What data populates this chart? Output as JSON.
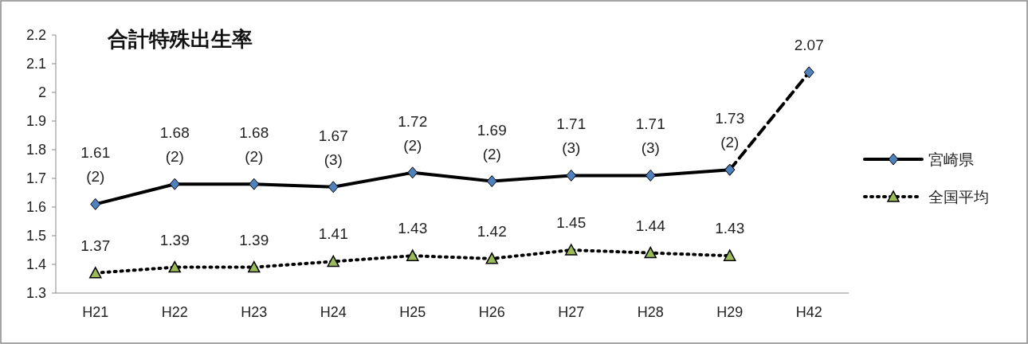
{
  "chart_data": {
    "type": "line",
    "title": "合計特殊出生率",
    "categories": [
      "H21",
      "H22",
      "H23",
      "H24",
      "H25",
      "H26",
      "H27",
      "H28",
      "H29",
      "H42"
    ],
    "ylim": [
      1.3,
      2.2
    ],
    "yticks": [
      1.3,
      1.4,
      1.5,
      1.6,
      1.7,
      1.8,
      1.9,
      2,
      2.1,
      2.2
    ],
    "grid": false,
    "legend": "right",
    "series": [
      {
        "name": "宮崎県",
        "color": "#000000",
        "marker": "diamond",
        "line_style": "solid",
        "values": [
          1.61,
          1.68,
          1.68,
          1.67,
          1.72,
          1.69,
          1.71,
          1.71,
          1.73,
          null
        ],
        "value_labels": [
          "1.61 (2)",
          "1.68 (2)",
          "1.68 (2)",
          "1.67 (3)",
          "1.72 (2)",
          "1.69 (2)",
          "1.71 (3)",
          "1.71 (3)",
          "1.73 (2)",
          null
        ]
      },
      {
        "color": "#000000",
        "marker": "diamond",
        "line_style": "dashed",
        "values": [
          null,
          null,
          null,
          null,
          null,
          null,
          null,
          null,
          1.73,
          2.07
        ],
        "value_labels": [
          null,
          null,
          null,
          null,
          null,
          null,
          null,
          null,
          null,
          "2.07"
        ]
      },
      {
        "name": "全国平均",
        "color": "#000000",
        "marker": "triangle",
        "line_style": "dotted",
        "values": [
          1.37,
          1.39,
          1.39,
          1.41,
          1.43,
          1.42,
          1.45,
          1.44,
          1.43,
          null
        ],
        "value_labels": [
          "1.37",
          "1.39",
          "1.39",
          "1.41",
          "1.43",
          "1.42",
          "1.45",
          "1.44",
          "1.43",
          null
        ]
      }
    ]
  }
}
